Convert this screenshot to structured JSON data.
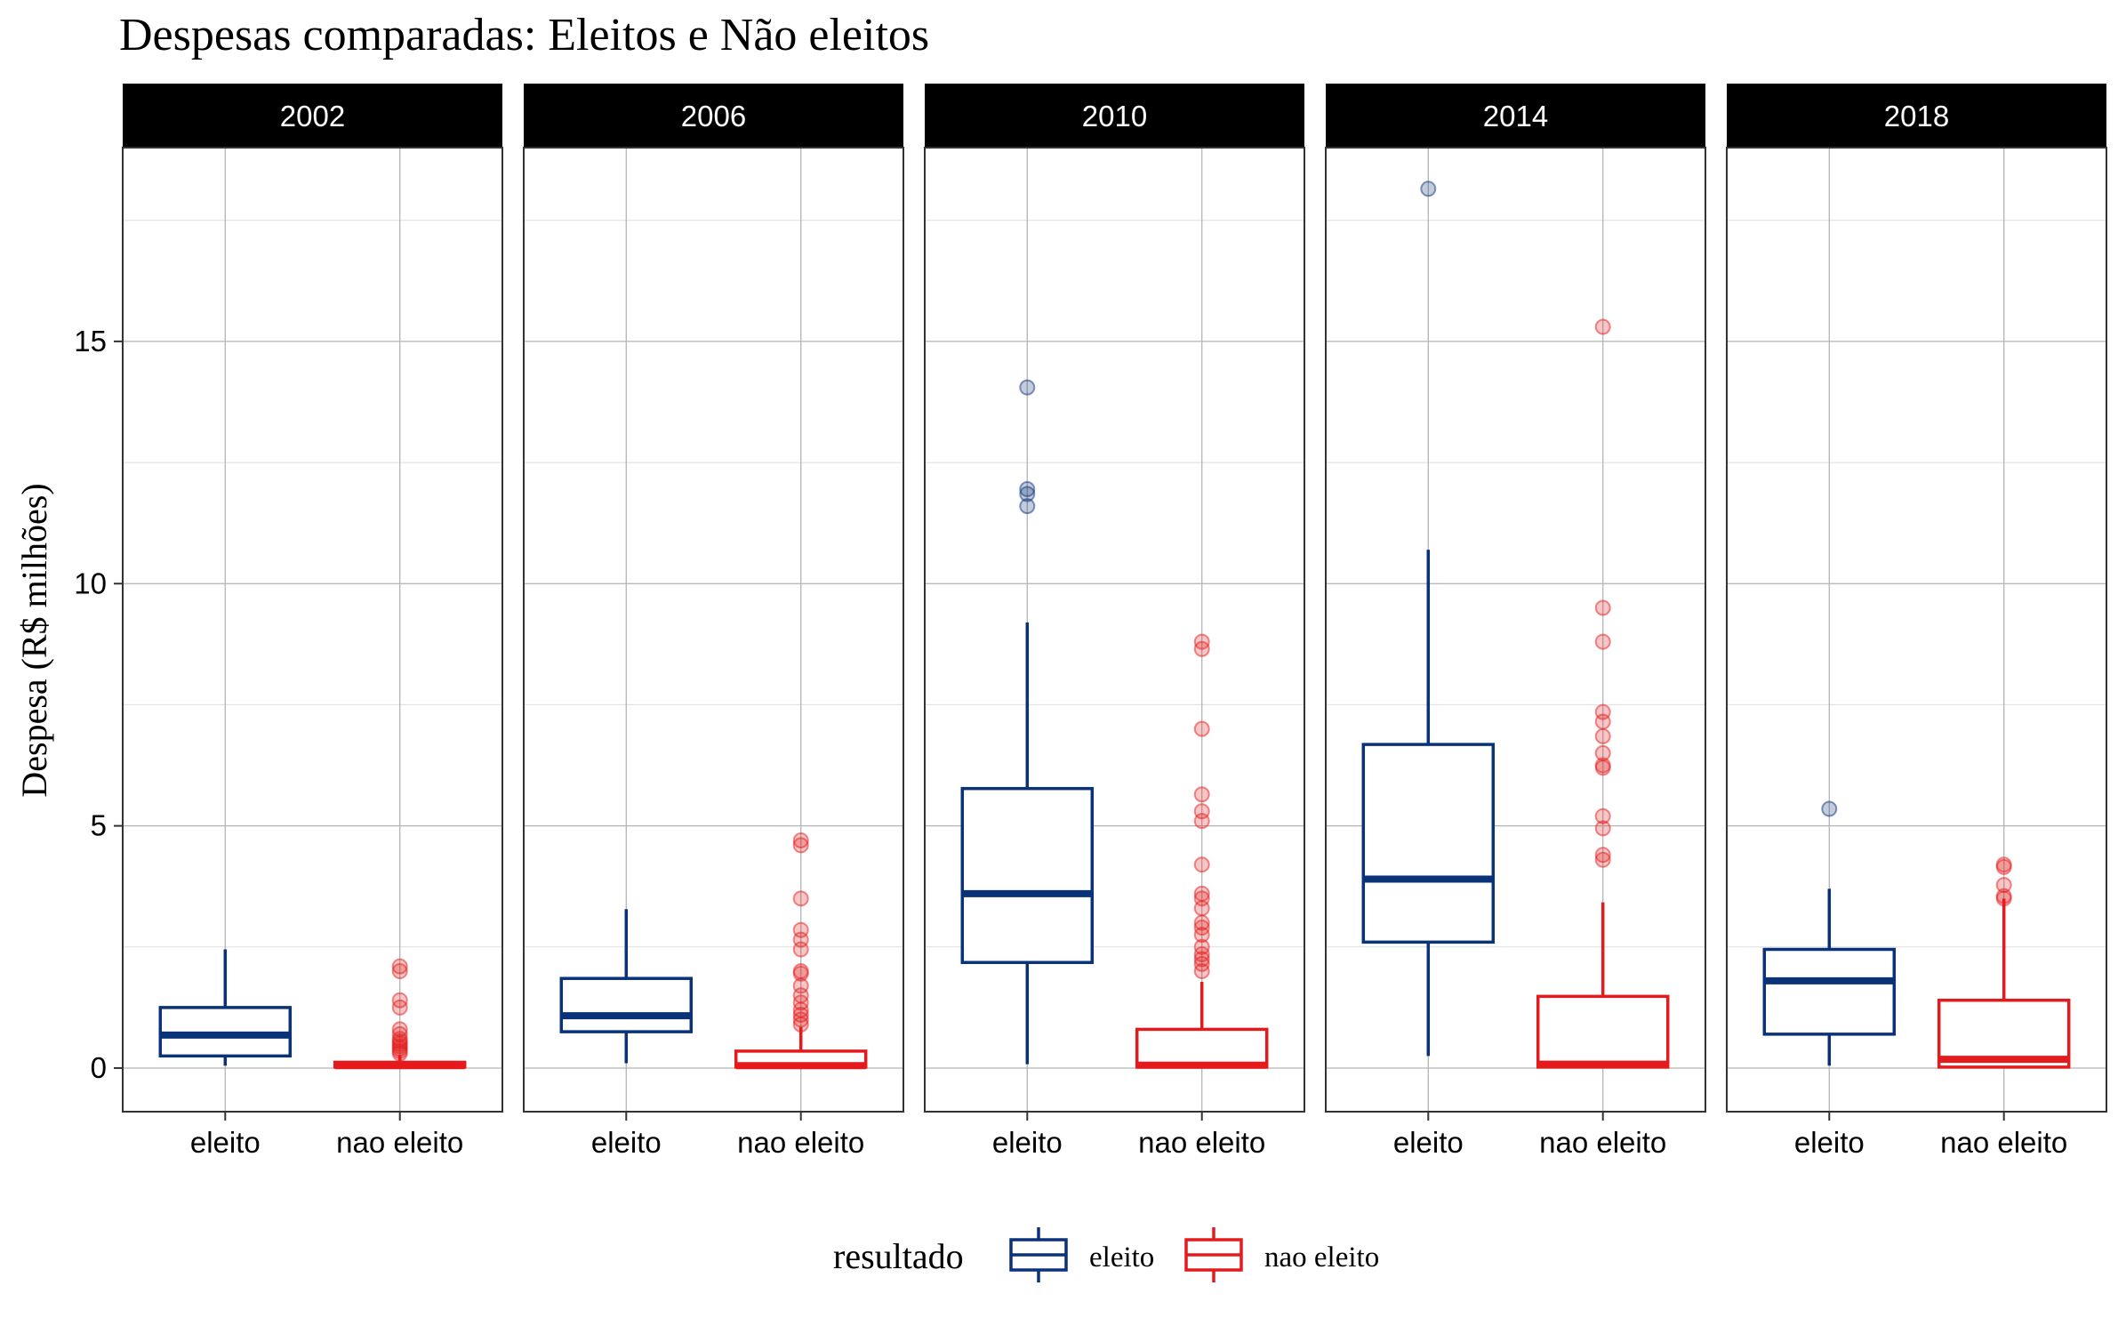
{
  "chart_data": {
    "type": "boxplot",
    "title": "Despesas comparadas: Eleitos e Não eleitos",
    "ylabel": "Despesa (R$ milhões)",
    "xlabel": "",
    "ylim": [
      -0.9,
      19.0
    ],
    "yticks": [
      0,
      5,
      10,
      15
    ],
    "grid": true,
    "facet_by": "ano",
    "categories": [
      "eleito",
      "nao eleito"
    ],
    "legend": {
      "title": "resultado",
      "placement": "bottom",
      "entries": [
        {
          "label": "eleito",
          "color": "#0A3279"
        },
        {
          "label": "nao eleito",
          "color": "#E41A1C"
        }
      ]
    },
    "panels": [
      {
        "facet": "2002",
        "boxes": [
          {
            "group": "eleito",
            "min": 0.05,
            "q1": 0.25,
            "median": 0.68,
            "q3": 1.25,
            "max": 2.45,
            "outliers": []
          },
          {
            "group": "nao eleito",
            "min": 0.0,
            "q1": 0.02,
            "median": 0.05,
            "q3": 0.12,
            "max": 0.27,
            "outliers": [
              0.3,
              0.35,
              0.4,
              0.45,
              0.5,
              0.55,
              0.6,
              0.7,
              0.8,
              1.25,
              1.4,
              2.0,
              2.1
            ]
          }
        ]
      },
      {
        "facet": "2006",
        "boxes": [
          {
            "group": "eleito",
            "min": 0.1,
            "q1": 0.75,
            "median": 1.08,
            "q3": 1.85,
            "max": 3.28,
            "outliers": []
          },
          {
            "group": "nao eleito",
            "min": 0.0,
            "q1": 0.02,
            "median": 0.05,
            "q3": 0.35,
            "max": 0.85,
            "outliers": [
              0.9,
              1.0,
              1.1,
              1.2,
              1.35,
              1.5,
              1.7,
              1.95,
              2.0,
              2.45,
              2.65,
              2.85,
              3.5,
              4.6,
              4.7
            ]
          }
        ]
      },
      {
        "facet": "2010",
        "boxes": [
          {
            "group": "eleito",
            "min": 0.08,
            "q1": 2.18,
            "median": 3.6,
            "q3": 5.77,
            "max": 9.2,
            "outliers": [
              11.6,
              11.85,
              11.95,
              14.05
            ]
          },
          {
            "group": "nao eleito",
            "min": 0.0,
            "q1": 0.02,
            "median": 0.06,
            "q3": 0.8,
            "max": 1.78,
            "outliers": [
              2.0,
              2.15,
              2.25,
              2.35,
              2.5,
              2.75,
              2.9,
              3.0,
              3.3,
              3.5,
              3.6,
              4.2,
              5.1,
              5.3,
              5.65,
              7.0,
              8.65,
              8.8
            ]
          }
        ]
      },
      {
        "facet": "2014",
        "boxes": [
          {
            "group": "eleito",
            "min": 0.25,
            "q1": 2.6,
            "median": 3.9,
            "q3": 6.68,
            "max": 10.7,
            "outliers": [
              18.15
            ]
          },
          {
            "group": "nao eleito",
            "min": 0.0,
            "q1": 0.02,
            "median": 0.08,
            "q3": 1.48,
            "max": 3.42,
            "outliers": [
              4.3,
              4.4,
              4.95,
              5.2,
              6.2,
              6.25,
              6.5,
              6.85,
              7.15,
              7.35,
              8.8,
              9.5,
              15.3
            ]
          }
        ]
      },
      {
        "facet": "2018",
        "boxes": [
          {
            "group": "eleito",
            "min": 0.05,
            "q1": 0.7,
            "median": 1.8,
            "q3": 2.45,
            "max": 3.7,
            "outliers": [
              5.35
            ]
          },
          {
            "group": "nao eleito",
            "min": 0.0,
            "q1": 0.02,
            "median": 0.18,
            "q3": 1.4,
            "max": 3.5,
            "outliers": [
              3.5,
              3.55,
              3.78,
              4.15,
              4.2
            ]
          }
        ]
      }
    ]
  }
}
